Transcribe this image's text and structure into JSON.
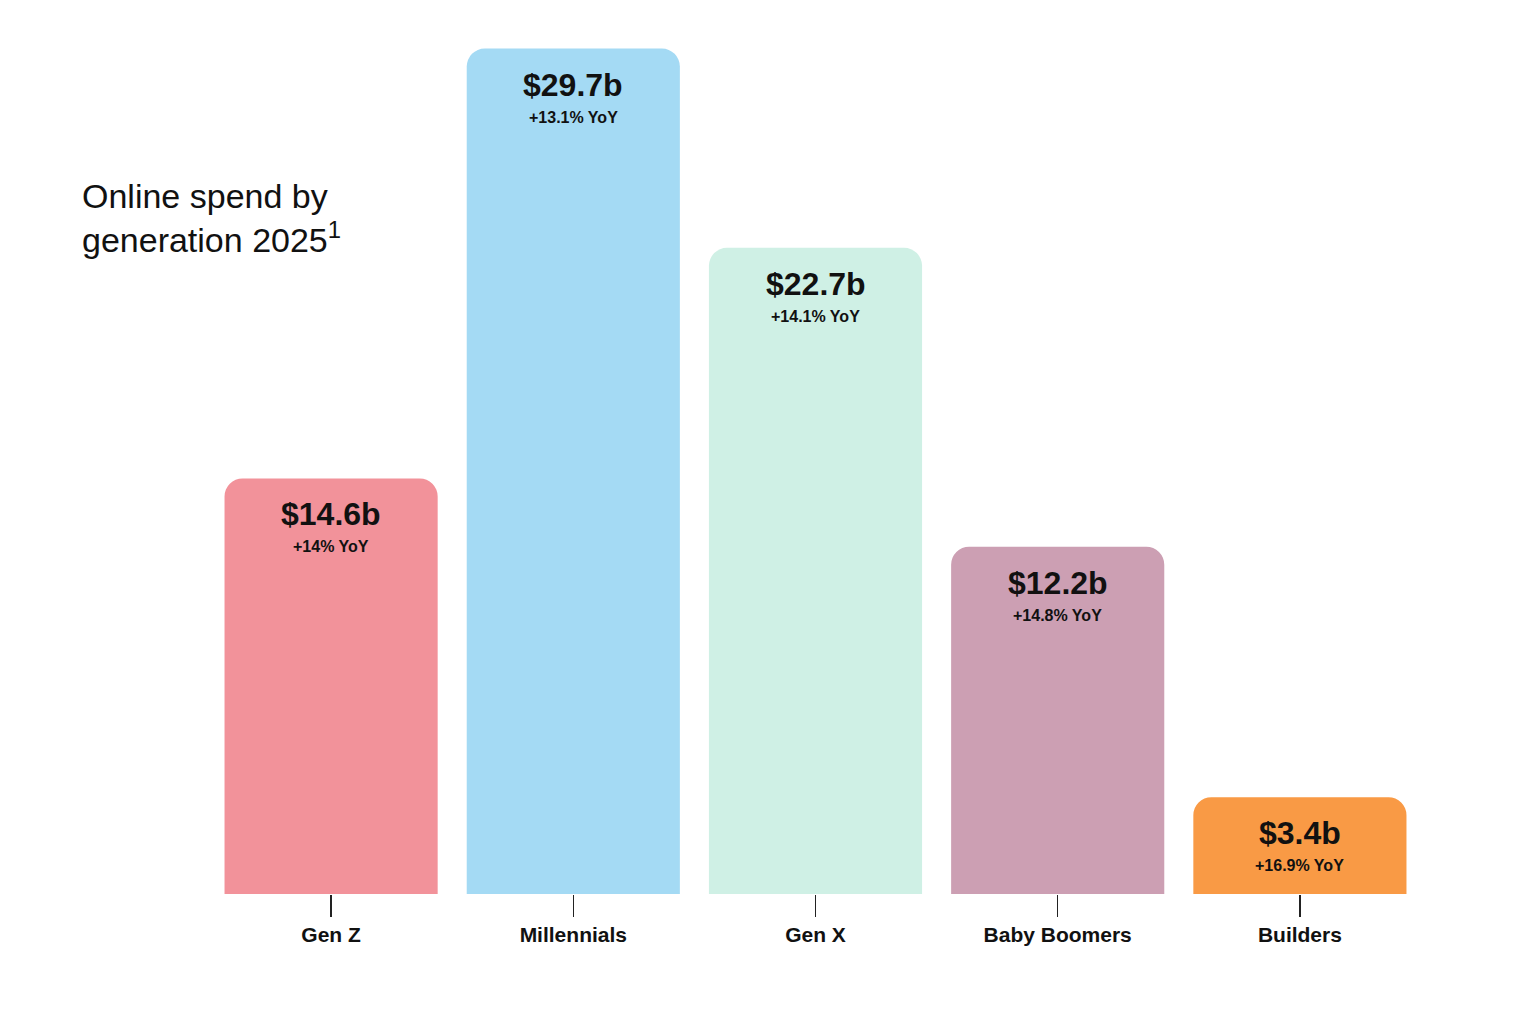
{
  "chart_data": {
    "type": "bar",
    "title": "Online spend by generation 2025",
    "title_note": "1",
    "categories": [
      "Gen Z",
      "Millennials",
      "Gen X",
      "Baby Boomers",
      "Builders"
    ],
    "values": [
      14.6,
      29.7,
      22.7,
      12.2,
      3.4
    ],
    "value_labels": [
      "$14.6b",
      "$29.7b",
      "$22.7b",
      "$12.2b",
      "$3.4b"
    ],
    "yoy": [
      14,
      13.1,
      14.1,
      14.8,
      16.9
    ],
    "yoy_labels": [
      "+14% YoY",
      "+13.1% YoY",
      "+14.1% YoY",
      "+14.8% YoY",
      "+16.9% YoY"
    ],
    "colors": [
      "#f2929a",
      "#a4daf4",
      "#cff0e5",
      "#cc9fb3",
      "#f99a45"
    ],
    "ylim": [
      0,
      30
    ],
    "grid": false,
    "data_labels": true,
    "tick_labels": "x"
  }
}
